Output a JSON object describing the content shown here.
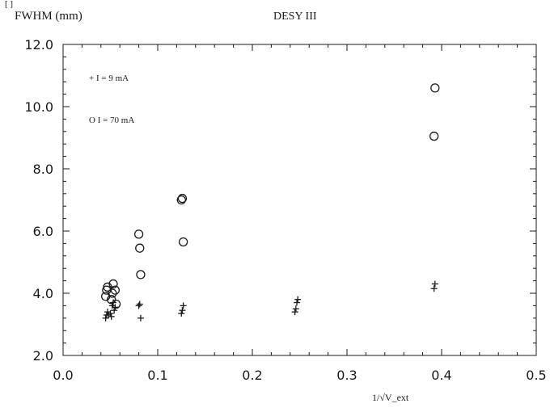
{
  "chart_data": {
    "type": "scatter",
    "ylabel": "FWHM (mm)",
    "title": "DESY III",
    "xlabel": "1/√V_ext",
    "xlim": [
      0.0,
      0.5
    ],
    "ylim": [
      2.0,
      12.0
    ],
    "xticks": [
      "0.0",
      "0.1",
      "0.2",
      "0.3",
      "0.4",
      "0.5"
    ],
    "yticks": [
      "2.0",
      "4.0",
      "6.0",
      "8.0",
      "10.0",
      "12.0"
    ],
    "grid": false,
    "legend_position": "top-left",
    "series": [
      {
        "name": "+ I = 9 mA",
        "marker": "plus",
        "points": [
          [
            0.045,
            3.2
          ],
          [
            0.046,
            3.3
          ],
          [
            0.047,
            3.4
          ],
          [
            0.048,
            3.3
          ],
          [
            0.05,
            3.35
          ],
          [
            0.051,
            3.25
          ],
          [
            0.052,
            3.6
          ],
          [
            0.053,
            3.7
          ],
          [
            0.054,
            3.45
          ],
          [
            0.055,
            3.55
          ],
          [
            0.08,
            3.6
          ],
          [
            0.081,
            3.65
          ],
          [
            0.082,
            3.2
          ],
          [
            0.125,
            3.35
          ],
          [
            0.126,
            3.45
          ],
          [
            0.127,
            3.6
          ],
          [
            0.245,
            3.4
          ],
          [
            0.246,
            3.5
          ],
          [
            0.247,
            3.7
          ],
          [
            0.248,
            3.8
          ],
          [
            0.392,
            4.15
          ],
          [
            0.393,
            4.3
          ]
        ]
      },
      {
        "name": "O I = 70 mA",
        "marker": "circle",
        "points": [
          [
            0.045,
            3.9
          ],
          [
            0.046,
            4.1
          ],
          [
            0.047,
            4.2
          ],
          [
            0.051,
            3.8
          ],
          [
            0.052,
            4.0
          ],
          [
            0.053,
            4.3
          ],
          [
            0.055,
            4.1
          ],
          [
            0.056,
            3.65
          ],
          [
            0.08,
            5.9
          ],
          [
            0.081,
            5.45
          ],
          [
            0.082,
            4.6
          ],
          [
            0.125,
            7.0
          ],
          [
            0.126,
            7.05
          ],
          [
            0.127,
            5.65
          ],
          [
            0.392,
            9.05
          ],
          [
            0.393,
            10.6
          ]
        ]
      }
    ]
  }
}
